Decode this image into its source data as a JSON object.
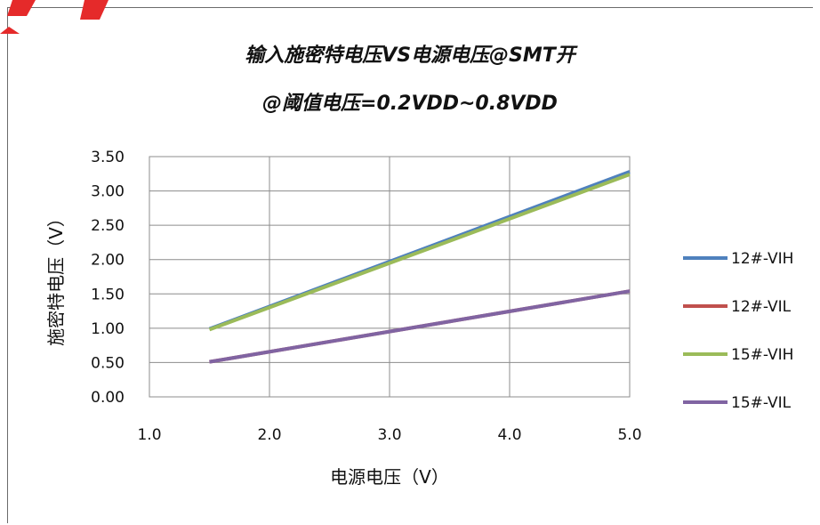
{
  "chart_data": {
    "type": "line",
    "title": "输入施密特电压VS电源电压@SMT开",
    "subtitle": "@阈值电压=0.2VDD~0.8VDD",
    "xlabel": "电源电压（V）",
    "ylabel": "施密特电压（V）",
    "xlim": [
      1.0,
      5.0
    ],
    "ylim": [
      0.0,
      3.5
    ],
    "x_ticks": [
      "1.0",
      "2.0",
      "3.0",
      "4.0",
      "5.0"
    ],
    "y_ticks": [
      "0.00",
      "0.50",
      "1.00",
      "1.50",
      "2.00",
      "2.50",
      "3.00",
      "3.50"
    ],
    "grid": true,
    "legend_position": "right",
    "series": [
      {
        "name": "12#-VIH",
        "color": "#4f81bd",
        "x": [
          1.5,
          5.0
        ],
        "y": [
          0.99,
          3.28
        ]
      },
      {
        "name": "12#-VIL",
        "color": "#c0504d",
        "x": [
          1.5,
          5.0
        ],
        "y": [
          0.51,
          1.54
        ]
      },
      {
        "name": "15#-VIH",
        "color": "#9bbb59",
        "x": [
          1.5,
          5.0
        ],
        "y": [
          0.98,
          3.24
        ]
      },
      {
        "name": "15#-VIL",
        "color": "#8064a2",
        "x": [
          1.5,
          5.0
        ],
        "y": [
          0.51,
          1.54
        ]
      }
    ]
  }
}
